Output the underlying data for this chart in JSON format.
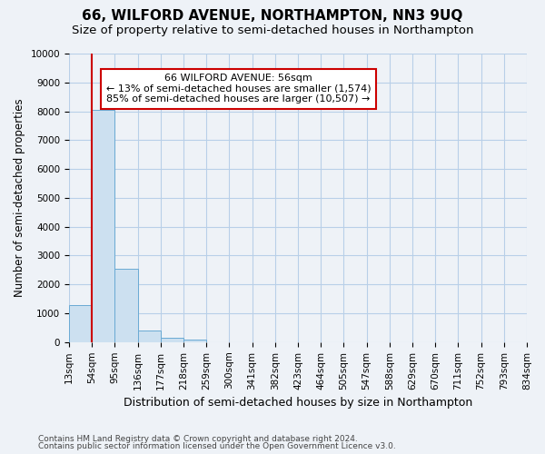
{
  "title": "66, WILFORD AVENUE, NORTHAMPTON, NN3 9UQ",
  "subtitle": "Size of property relative to semi-detached houses in Northampton",
  "xlabel": "Distribution of semi-detached houses by size in Northampton",
  "ylabel": "Number of semi-detached properties",
  "footnote1": "Contains HM Land Registry data © Crown copyright and database right 2024.",
  "footnote2": "Contains public sector information licensed under the Open Government Licence v3.0.",
  "bin_labels": [
    "13sqm",
    "54sqm",
    "95sqm",
    "136sqm",
    "177sqm",
    "218sqm",
    "259sqm",
    "300sqm",
    "341sqm",
    "382sqm",
    "423sqm",
    "464sqm",
    "505sqm",
    "547sqm",
    "588sqm",
    "629sqm",
    "670sqm",
    "711sqm",
    "752sqm",
    "793sqm",
    "834sqm"
  ],
  "bar_values": [
    1300,
    8050,
    2550,
    400,
    150,
    100,
    0,
    0,
    0,
    0,
    0,
    0,
    0,
    0,
    0,
    0,
    0,
    0,
    0,
    0
  ],
  "bar_color": "#cce0f0",
  "bar_edge_color": "#6aaad4",
  "grid_color": "#b8cfe8",
  "property_line_x": 1.0,
  "annotation_text_line1": "66 WILFORD AVENUE: 56sqm",
  "annotation_text_line2": "← 13% of semi-detached houses are smaller (1,574)",
  "annotation_text_line3": "85% of semi-detached houses are larger (10,507) →",
  "annotation_box_color": "#ffffff",
  "annotation_border_color": "#cc0000",
  "title_fontsize": 11,
  "subtitle_fontsize": 9.5,
  "ylabel_fontsize": 8.5,
  "xlabel_fontsize": 9,
  "annotation_fontsize": 8,
  "tick_fontsize": 7.5,
  "footnote_fontsize": 6.5,
  "ylim": [
    0,
    10000
  ],
  "yticks": [
    0,
    1000,
    2000,
    3000,
    4000,
    5000,
    6000,
    7000,
    8000,
    9000,
    10000
  ],
  "background_color": "#eef2f7"
}
